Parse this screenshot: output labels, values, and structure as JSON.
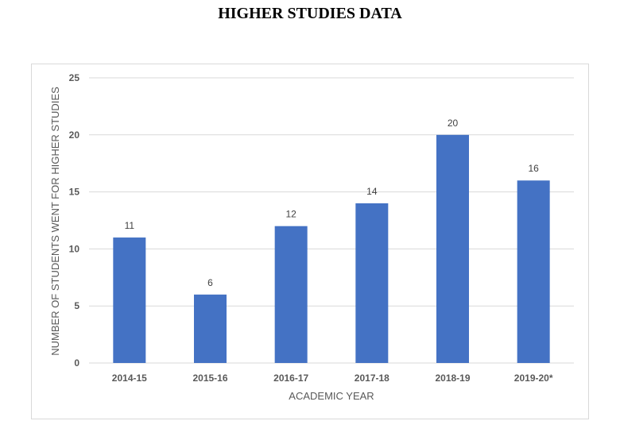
{
  "page": {
    "title": "HIGHER STUDIES DATA"
  },
  "chart_data": {
    "type": "bar",
    "categories": [
      "2014-15",
      "2015-16",
      "2016-17",
      "2017-18",
      "2018-19",
      "2019-20*"
    ],
    "values": [
      11,
      6,
      12,
      14,
      20,
      16
    ],
    "title": "HIGHER STUDIES DATA",
    "xlabel": "ACADEMIC YEAR",
    "ylabel": "NUMBER OF STUDENTS WENT FOR HIGHER STUDIES",
    "ylim": [
      0,
      25
    ],
    "yticks": [
      0,
      5,
      10,
      15,
      20,
      25
    ],
    "grid": true,
    "legend": "none",
    "bar_color": "#4472c4",
    "gridline_color": "#d9d9d9"
  }
}
